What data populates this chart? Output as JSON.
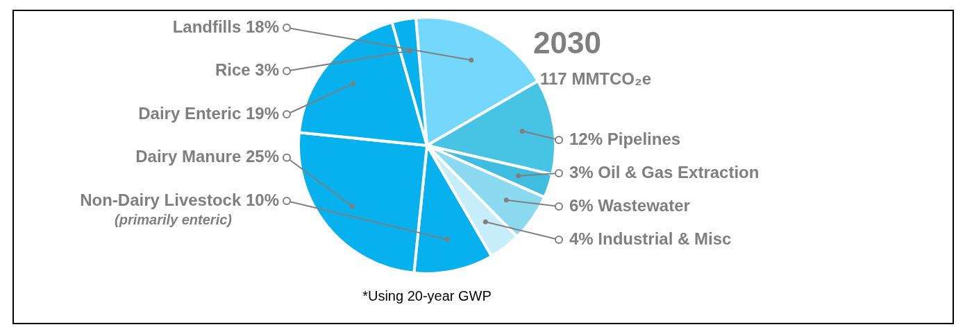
{
  "chart_data": {
    "type": "pie",
    "title": "2030",
    "subtitle": "117 MMTCO₂e",
    "categories": [
      "Landfills",
      "Pipelines",
      "Oil & Gas Extraction",
      "Wastewater",
      "Industrial & Misc",
      "Non-Dairy Livestock",
      "Dairy Manure",
      "Dairy Enteric",
      "Rice"
    ],
    "values": [
      18,
      12,
      3,
      6,
      4,
      10,
      25,
      19,
      3
    ],
    "value_labels": [
      "18%",
      "12%",
      "3%",
      "6%",
      "4%",
      "10%",
      "25%",
      "19%",
      "3%"
    ],
    "colors": [
      "#73d8fc",
      "#47c3e3",
      "#3fbde0",
      "#8cdaef",
      "#c6eefa",
      "#06b1ee",
      "#06b1ee",
      "#06b1ee",
      "#06b1ee"
    ],
    "annotations": [
      "(primarily enteric)",
      "*Using 20-year GWP"
    ],
    "legend": false
  }
}
